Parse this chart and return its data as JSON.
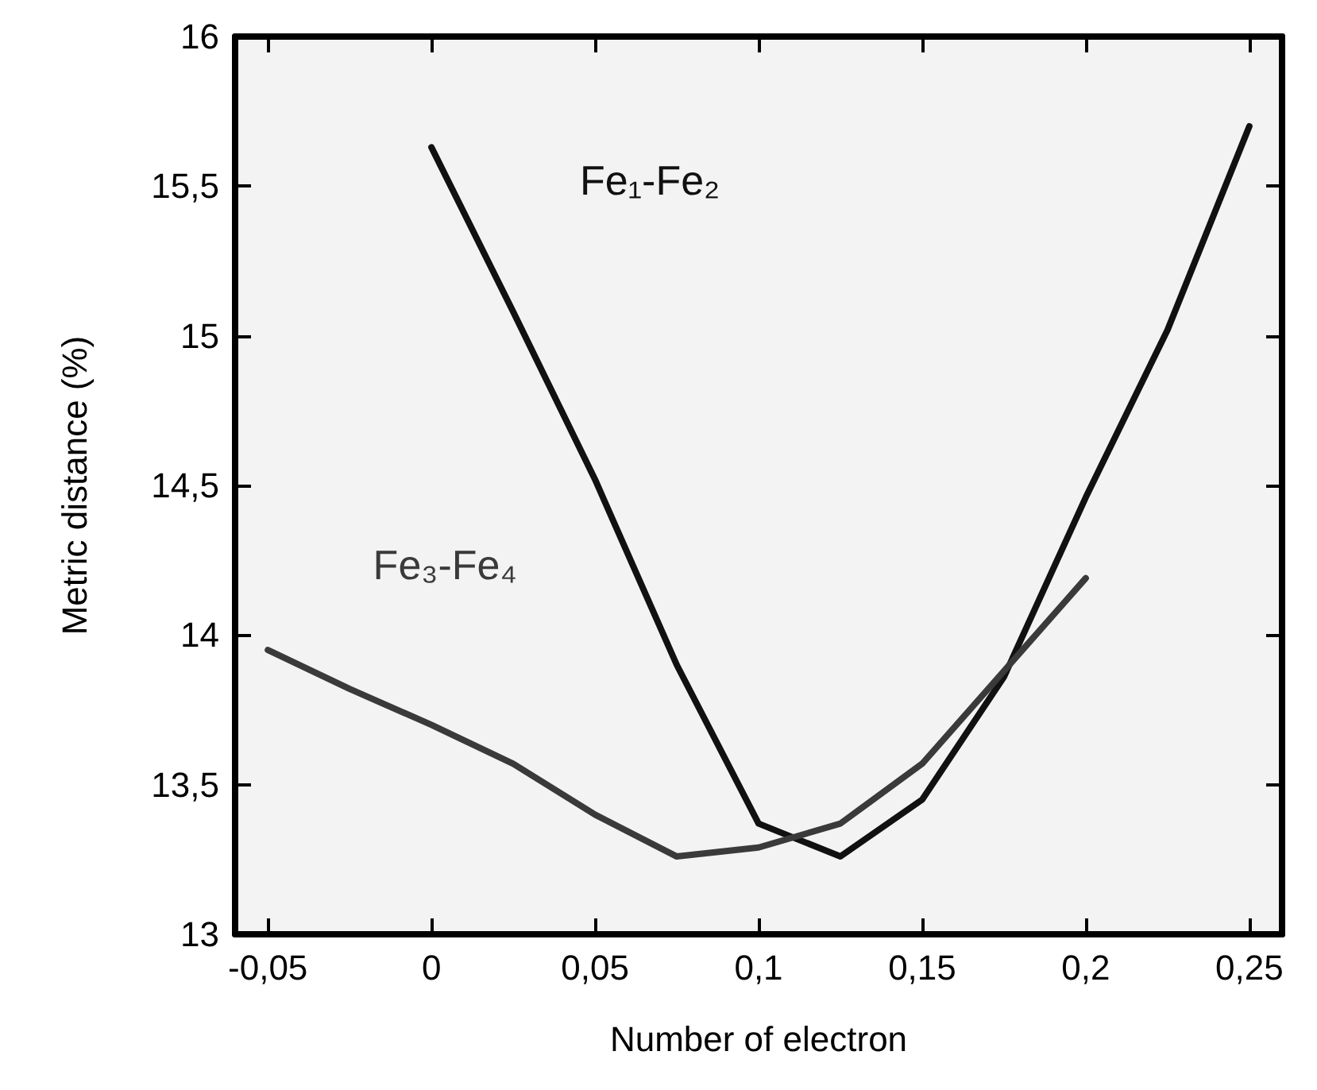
{
  "chart_data": {
    "type": "line",
    "xlabel": "Number of electron",
    "ylabel": "Metric distance (%)",
    "xlim": [
      -0.06,
      0.26
    ],
    "ylim": [
      13,
      16
    ],
    "xticks": [
      {
        "value": -0.05,
        "label": "-0,05"
      },
      0,
      {
        "value": 0.05,
        "label": "0,05"
      },
      {
        "value": 0.1,
        "label": "0,1"
      },
      {
        "value": 0.15,
        "label": "0,15"
      },
      {
        "value": 0.2,
        "label": "0,2"
      },
      {
        "value": 0.25,
        "label": "0,25"
      }
    ],
    "yticks": [
      13,
      {
        "value": 13.5,
        "label": "13,5"
      },
      14,
      {
        "value": 14.5,
        "label": "14,5"
      },
      15,
      {
        "value": 15.5,
        "label": "15,5"
      },
      16
    ],
    "grid": false,
    "legend": false,
    "marker": "none",
    "line_style": "solid",
    "series": [
      {
        "name": "Fe₁-Fe₂",
        "color": "#111111",
        "x": [
          0,
          0.025,
          0.05,
          0.075,
          0.1,
          0.125,
          0.15,
          0.175,
          0.2,
          0.225,
          0.25
        ],
        "values": [
          15.63,
          15.08,
          14.52,
          13.9,
          13.37,
          13.26,
          13.45,
          13.86,
          14.46,
          15.02,
          15.7
        ]
      },
      {
        "name": "Fe₃-Fe₄",
        "color": "#3a3a3a",
        "x": [
          -0.05,
          -0.025,
          0,
          0.025,
          0.05,
          0.075,
          0.1,
          0.125,
          0.15,
          0.175,
          0.2
        ],
        "values": [
          13.95,
          13.82,
          13.7,
          13.57,
          13.4,
          13.26,
          13.29,
          13.37,
          13.57,
          13.88,
          14.19
        ]
      }
    ]
  }
}
